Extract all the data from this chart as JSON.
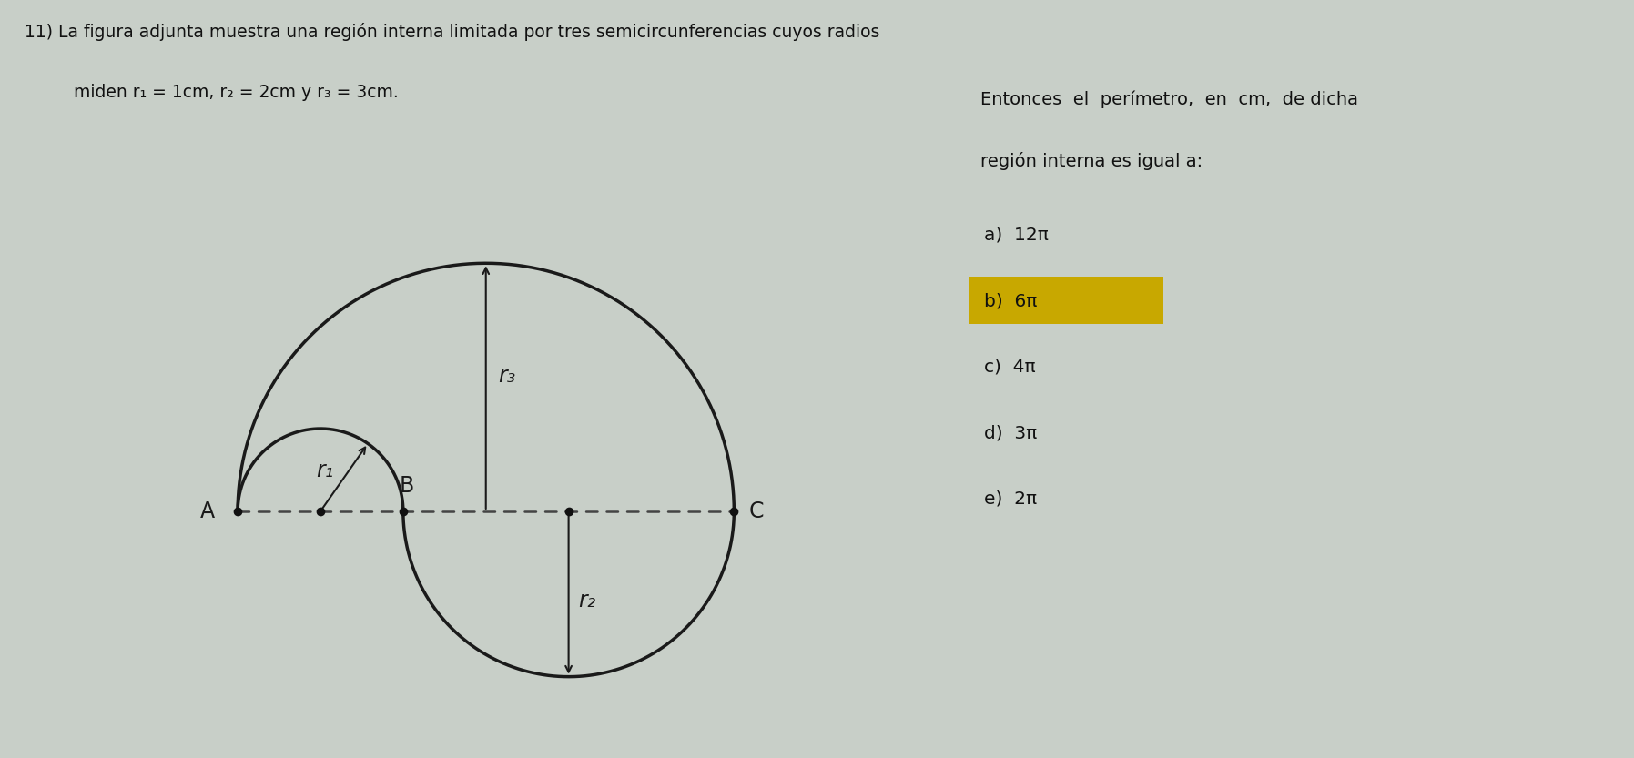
{
  "title_line1": "11) La figura adjunta muestra una regín interna limitada por tres semicircunferencias cuyos radios",
  "title_line2": "    miden r₁ = 1cm, r₂ = 2cm y r₃ = 3cm.",
  "r1": 1,
  "r2": 2,
  "r3": 3,
  "bg_color": "#c8cfc8",
  "arc_color": "#1a1a1a",
  "dashed_color": "#444444",
  "label_r1": "r₁",
  "label_r2": "r₂",
  "label_r3": "r₃",
  "label_A": "A",
  "label_B": "B",
  "label_C": "C",
  "choices": [
    "a)  12π",
    "b)  6π",
    "c)  4π",
    "d)  3π",
    "e)  2π"
  ],
  "highlight_index": 1,
  "highlight_color": "#c8a800",
  "right_text_line1": "Entonces  el  perímetro,  en  cm,  de dicha",
  "right_text_line2": "región interna es igual a:"
}
